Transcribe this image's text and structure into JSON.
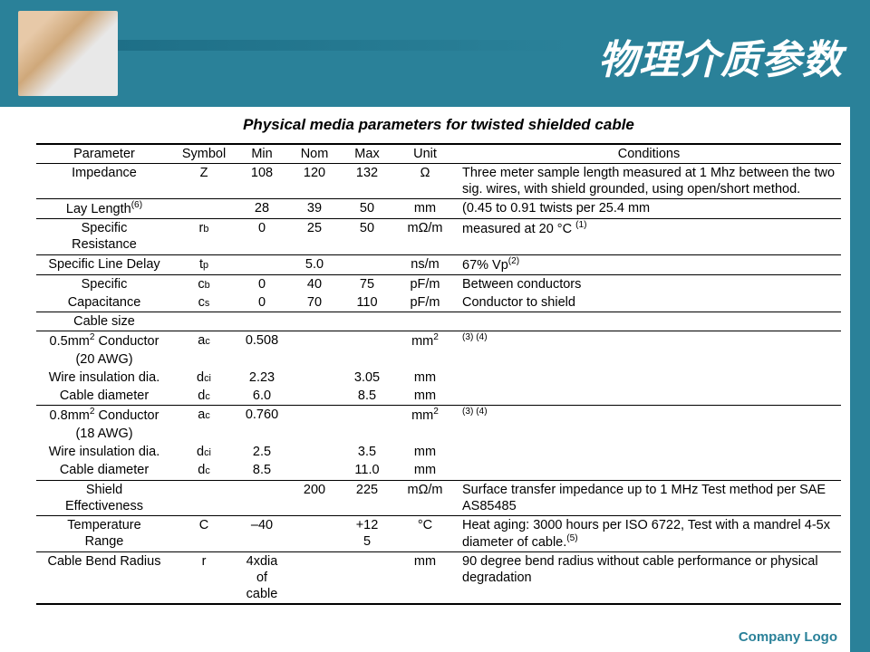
{
  "theme": {
    "bar_color": "#2a8199",
    "title_color": "#ffffff",
    "text_color": "#000000"
  },
  "slide": {
    "title": "物理介质参数",
    "table_title": "Physical media parameters for twisted shielded cable",
    "footer": "Company Logo"
  },
  "columns": {
    "c0": "Parameter",
    "c1": "Symbol",
    "c2": "Min",
    "c3": "Nom",
    "c4": "Max",
    "c5": "Unit",
    "c6": "Conditions"
  },
  "rows": {
    "impedance": {
      "param": "Impedance",
      "sym": "Z",
      "min": "108",
      "nom": "120",
      "max": "132",
      "unit": "Ω",
      "cond": "Three meter sample length measured at 1 Mhz between the two sig. wires, with shield grounded, using open/short method."
    },
    "lay": {
      "param_html": "Lay Length",
      "param_sup": "(6)",
      "sym": "",
      "min": "28",
      "nom": "39",
      "max": "50",
      "unit": "mm",
      "cond": "(0.45 to 0.91 twists per 25.4 mm"
    },
    "sr": {
      "param1": "Specific",
      "param2": "Resistance",
      "sym_main": "r",
      "sym_sub": "b",
      "min": "0",
      "nom": "25",
      "max": "50",
      "unit": "mΩ/m",
      "cond_pre": "measured at 20 °C ",
      "cond_sup": "(1)"
    },
    "delay": {
      "param": "Specific Line Delay",
      "sym_main": "t",
      "sym_sub": "p",
      "min": "",
      "nom": "5.0",
      "max": "",
      "unit": "ns/m",
      "cond_pre": "67% Vp",
      "cond_sup": "(2)"
    },
    "cap1": {
      "param": "Specific",
      "sym_main": "c",
      "sym_sub": "b",
      "min": "0",
      "nom": "40",
      "max": "75",
      "unit": "pF/m",
      "cond": "Between conductors"
    },
    "cap2": {
      "param": "Capacitance",
      "sym_main": "c",
      "sym_sub": "s",
      "min": "0",
      "nom": "70",
      "max": "110",
      "unit": "pF/m",
      "cond": "Conductor to shield"
    },
    "size_hdr": {
      "param": "Cable size"
    },
    "c05a": {
      "param_pre": "0.5mm",
      "param_sup": "2",
      "param_post": " Conductor",
      "sym_main": "a",
      "sym_sub": "c",
      "min": "0.508",
      "nom": "",
      "max": "",
      "unit_pre": "mm",
      "unit_sup": "2",
      "cond_sup": "(3) (4)"
    },
    "c05b": {
      "param": "(20 AWG)"
    },
    "c05w": {
      "param": "Wire insulation dia.",
      "sym_main": "d",
      "sym_sub": "ci",
      "min": "2.23",
      "nom": "",
      "max": "3.05",
      "unit": "mm"
    },
    "c05d": {
      "param": "Cable diameter",
      "sym_main": "d",
      "sym_sub": "c",
      "min": "6.0",
      "nom": "",
      "max": "8.5",
      "unit": "mm"
    },
    "c08a": {
      "param_pre": "0.8mm",
      "param_sup": "2",
      "param_post": " Conductor",
      "sym_main": "a",
      "sym_sub": "c",
      "min": "0.760",
      "nom": "",
      "max": "",
      "unit_pre": "mm",
      "unit_sup": "2",
      "cond_sup": "(3) (4)"
    },
    "c08b": {
      "param": "(18 AWG)"
    },
    "c08w": {
      "param": "Wire insulation dia.",
      "sym_main": "d",
      "sym_sub": "ci",
      "min": "2.5",
      "nom": "",
      "max": "3.5",
      "unit": "mm"
    },
    "c08d": {
      "param": "Cable diameter",
      "sym_main": "d",
      "sym_sub": "c",
      "min": "8.5",
      "nom": "",
      "max": "11.0",
      "unit": "mm"
    },
    "shield": {
      "param1": "Shield",
      "param2": "Effectiveness",
      "sym": "",
      "min": "",
      "nom": "200",
      "max": "225",
      "unit": "mΩ/m",
      "cond": "Surface transfer impedance up to 1 MHz Test method per SAE AS85485"
    },
    "temp": {
      "param1": "Temperature",
      "param2": "Range",
      "sym": "C",
      "min": "–40",
      "nom": "",
      "max1": "+12",
      "max2": "5",
      "unit": "°C",
      "cond_pre": "Heat aging:  3000 hours per ISO 6722, Test with a mandrel 4-5x diameter of cable.",
      "cond_sup": "(5)"
    },
    "bend": {
      "param": "Cable Bend Radius",
      "sym": "r",
      "min1": "4xdia",
      "min2": "of cable",
      "nom": "",
      "max": "",
      "unit": "mm",
      "cond": "90 degree bend radius without cable performance or physical degradation"
    }
  }
}
